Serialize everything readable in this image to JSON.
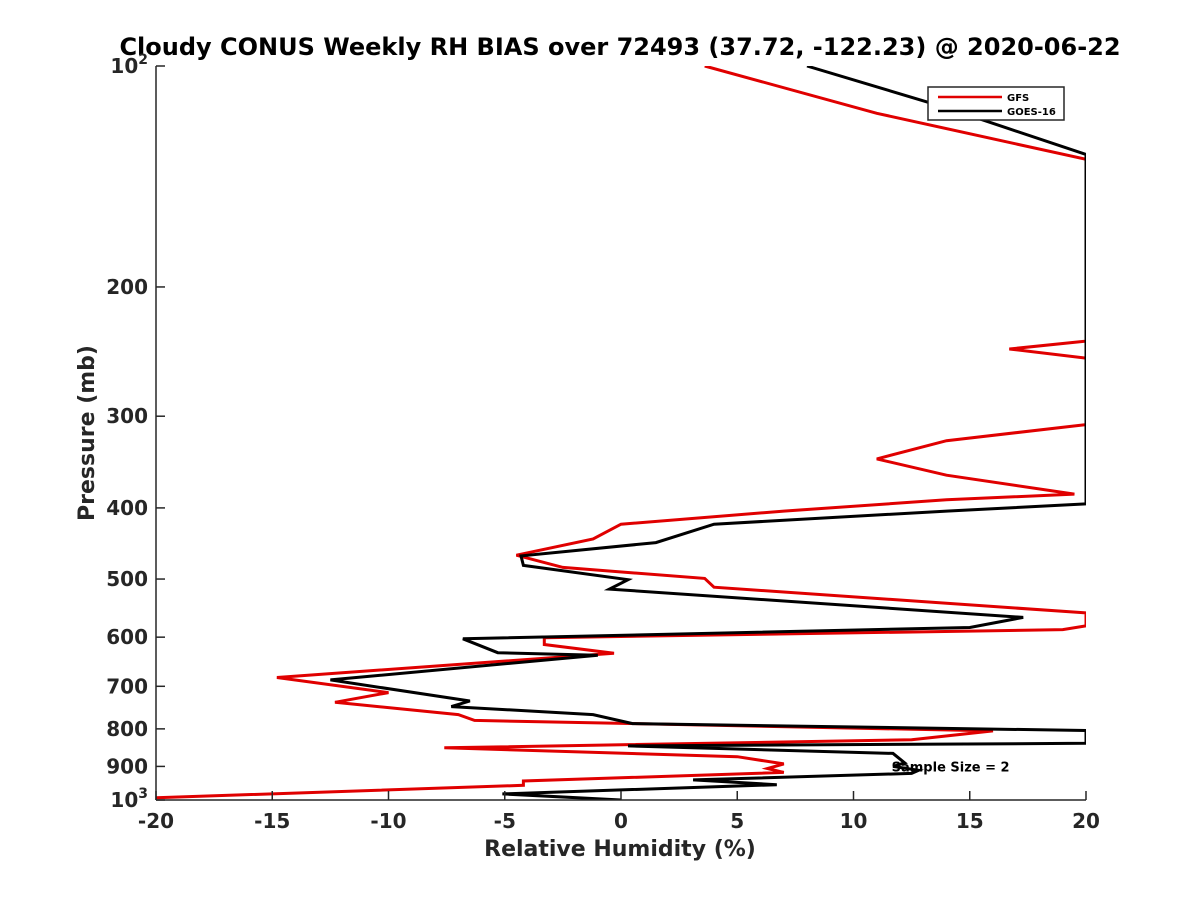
{
  "chart_data": {
    "type": "line",
    "title": "Cloudy CONUS Weekly RH BIAS over 72493 (37.72, -122.23) @ 2020-06-22",
    "xlabel": "Relative Humidity (%)",
    "ylabel": "Pressure (mb)",
    "xlim": [
      -20,
      20
    ],
    "ylim": [
      100,
      1000
    ],
    "y_scale": "log",
    "y_reversed": true,
    "grid": false,
    "legend_position": "top-right",
    "x_ticks": [
      -20,
      -15,
      -10,
      -5,
      0,
      5,
      10,
      15,
      20
    ],
    "x_tick_labels": [
      "-20",
      "-15",
      "-10",
      "-5",
      "0",
      "5",
      "10",
      "15",
      "20"
    ],
    "y_ticks": [
      100,
      200,
      300,
      400,
      500,
      600,
      700,
      800,
      900,
      1000
    ],
    "y_tick_labels": [
      {
        "base": "10",
        "exp": "2"
      },
      {
        "base": "200",
        "exp": ""
      },
      {
        "base": "300",
        "exp": ""
      },
      {
        "base": "400",
        "exp": ""
      },
      {
        "base": "500",
        "exp": ""
      },
      {
        "base": "600",
        "exp": ""
      },
      {
        "base": "700",
        "exp": ""
      },
      {
        "base": "800",
        "exp": ""
      },
      {
        "base": "900",
        "exp": ""
      },
      {
        "base": "10",
        "exp": "3"
      }
    ],
    "annotation": "Sample Size = 2",
    "annotation_x": 12.5,
    "annotation_y": 900,
    "series": [
      {
        "name": "GFS",
        "color": "#e00000",
        "points": [
          [
            3.6,
            100
          ],
          [
            11.0,
            116
          ],
          [
            20.0,
            134
          ],
          [
            20.0,
            237
          ],
          [
            16.7,
            243
          ],
          [
            20.0,
            250
          ],
          [
            20.0,
            308
          ],
          [
            14.0,
            324
          ],
          [
            11.0,
            343
          ],
          [
            14.0,
            361
          ],
          [
            19.5,
            383
          ],
          [
            14.0,
            390
          ],
          [
            7.0,
            404
          ],
          [
            0.0,
            421
          ],
          [
            -1.2,
            441
          ],
          [
            -4.5,
            464
          ],
          [
            -2.5,
            482
          ],
          [
            3.6,
            499
          ],
          [
            4.0,
            513
          ],
          [
            20.0,
            556
          ],
          [
            20.0,
            579
          ],
          [
            19.0,
            586
          ],
          [
            -3.3,
            601
          ],
          [
            -3.3,
            614
          ],
          [
            -0.3,
            631
          ],
          [
            -14.8,
            681
          ],
          [
            -10.0,
            714
          ],
          [
            -12.3,
            736
          ],
          [
            -7.0,
            765
          ],
          [
            -6.3,
            779
          ],
          [
            16.0,
            805
          ],
          [
            12.5,
            828
          ],
          [
            -7.6,
            849
          ],
          [
            5.0,
            873
          ],
          [
            7.0,
            893
          ],
          [
            6.3,
            906
          ],
          [
            7.0,
            917
          ],
          [
            -4.2,
            942
          ],
          [
            -4.2,
            955
          ],
          [
            -20.0,
            993
          ]
        ]
      },
      {
        "name": "GOES-16",
        "color": "#000000",
        "points": [
          [
            8.0,
            100
          ],
          [
            14.0,
            114
          ],
          [
            20.0,
            132
          ],
          [
            20.0,
            395
          ],
          [
            14.0,
            404
          ],
          [
            4.0,
            421
          ],
          [
            1.5,
            446
          ],
          [
            -4.3,
            465
          ],
          [
            -4.2,
            479
          ],
          [
            0.3,
            501
          ],
          [
            -0.5,
            516
          ],
          [
            17.3,
            564
          ],
          [
            15.0,
            582
          ],
          [
            -6.8,
            603
          ],
          [
            -5.3,
            630
          ],
          [
            -1.0,
            635
          ],
          [
            -12.5,
            686
          ],
          [
            -6.5,
            733
          ],
          [
            -7.3,
            746
          ],
          [
            -1.2,
            765
          ],
          [
            0.5,
            787
          ],
          [
            20.0,
            804
          ],
          [
            20.0,
            837
          ],
          [
            0.3,
            844
          ],
          [
            11.7,
            864
          ],
          [
            12.2,
            890
          ],
          [
            11.7,
            900
          ],
          [
            12.8,
            911
          ],
          [
            12.5,
            920
          ],
          [
            3.1,
            939
          ],
          [
            6.7,
            953
          ],
          [
            -5.1,
            981
          ],
          [
            0.0,
            1000
          ]
        ]
      }
    ]
  }
}
